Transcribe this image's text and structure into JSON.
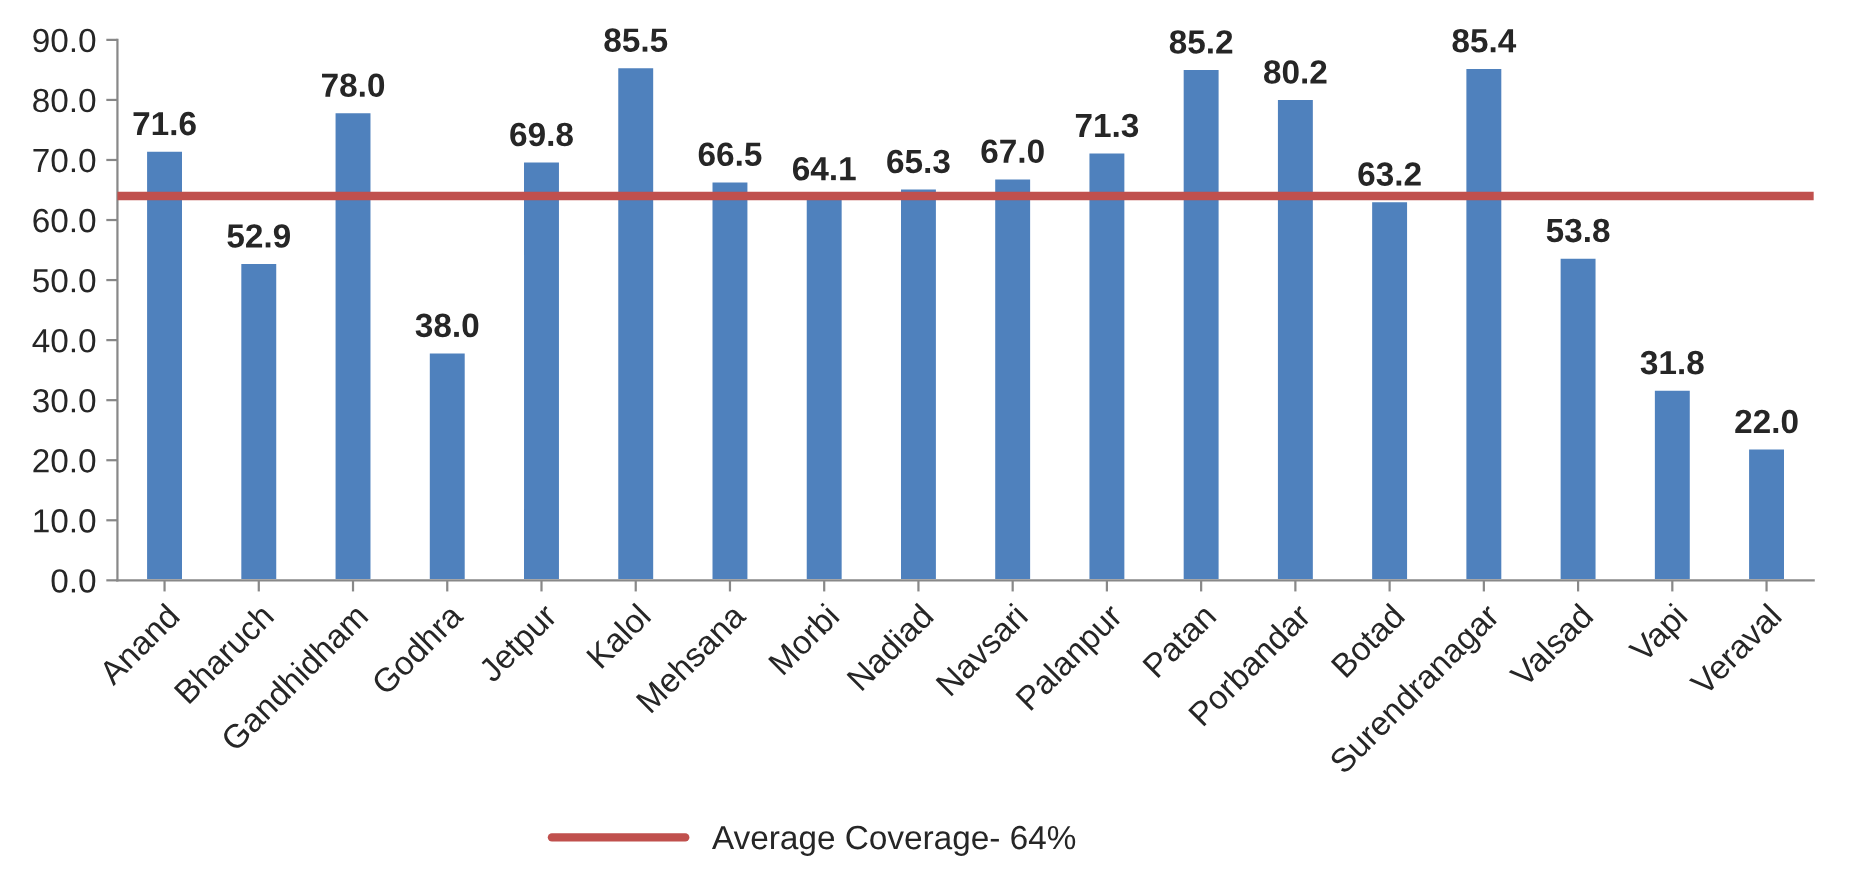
{
  "chart_data": {
    "type": "bar",
    "categories": [
      "Anand",
      "Bharuch",
      "Gandhidham",
      "Godhra",
      "Jetpur",
      "Kalol",
      "Mehsana",
      "Morbi",
      "Nadiad",
      "Navsari",
      "Palanpur",
      "Patan",
      "Porbandar",
      "Botad",
      "Surendranagar",
      "Valsad",
      "Vapi",
      "Veraval"
    ],
    "values": [
      71.6,
      52.9,
      78.0,
      38.0,
      69.8,
      85.5,
      66.5,
      64.1,
      65.3,
      67.0,
      71.3,
      85.2,
      80.2,
      63.2,
      85.4,
      53.8,
      31.8,
      22.0
    ],
    "value_labels": [
      "71.6",
      "52.9",
      "78.0",
      "38.0",
      "69.8",
      "85.5",
      "66.5",
      "64.1",
      "65.3",
      "67.0",
      "71.3",
      "85.2",
      "80.2",
      "63.2",
      "85.4",
      "53.8",
      "31.8",
      "22.0"
    ],
    "color": "#4f81bd",
    "ylim": [
      0,
      90
    ],
    "yticks": [
      {
        "value": 0,
        "label": "0.0"
      },
      {
        "value": 10,
        "label": "10.0"
      },
      {
        "value": 20,
        "label": "20.0"
      },
      {
        "value": 30,
        "label": "30.0"
      },
      {
        "value": 40,
        "label": "40.0"
      },
      {
        "value": 50,
        "label": "50.0"
      },
      {
        "value": 60,
        "label": "60.0"
      },
      {
        "value": 70,
        "label": "70.0"
      },
      {
        "value": 80,
        "label": "80.0"
      },
      {
        "value": 90,
        "label": "90.0"
      }
    ],
    "ref_lines": [
      {
        "axis": "y",
        "value": 64,
        "label": "Average Coverage- 64%",
        "color": "#c0504d"
      }
    ],
    "legend": "bottom",
    "grid": false
  }
}
